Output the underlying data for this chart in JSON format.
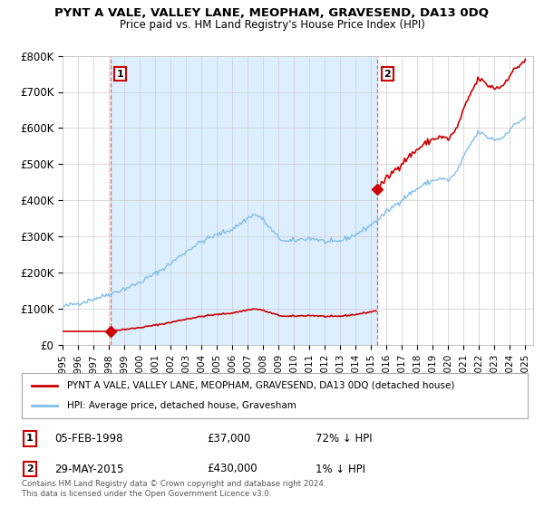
{
  "title": "PYNT A VALE, VALLEY LANE, MEOPHAM, GRAVESEND, DA13 0DQ",
  "subtitle": "Price paid vs. HM Land Registry's House Price Index (HPI)",
  "sale1_date": 1998.09,
  "sale1_price": 37000,
  "sale2_date": 2015.41,
  "sale2_price": 430000,
  "hpi_color": "#7fbfea",
  "price_color": "#cc0000",
  "shaded_color": "#ddeeff",
  "ylim": [
    0,
    800000
  ],
  "xlim": [
    1995.0,
    2025.5
  ],
  "yticks": [
    0,
    100000,
    200000,
    300000,
    400000,
    500000,
    600000,
    700000,
    800000
  ],
  "ytick_labels": [
    "£0",
    "£100K",
    "£200K",
    "£300K",
    "£400K",
    "£500K",
    "£600K",
    "£700K",
    "£800K"
  ],
  "xticks": [
    1995,
    1996,
    1997,
    1998,
    1999,
    2000,
    2001,
    2002,
    2003,
    2004,
    2005,
    2006,
    2007,
    2008,
    2009,
    2010,
    2011,
    2012,
    2013,
    2014,
    2015,
    2016,
    2017,
    2018,
    2019,
    2020,
    2021,
    2022,
    2023,
    2024,
    2025
  ],
  "legend_label1": "PYNT A VALE, VALLEY LANE, MEOPHAM, GRAVESEND, DA13 0DQ (detached house)",
  "legend_label2": "HPI: Average price, detached house, Gravesham",
  "annotation1_text": "05-FEB-1998",
  "annotation1_price": "£37,000",
  "annotation1_hpi": "72% ↓ HPI",
  "annotation2_text": "29-MAY-2015",
  "annotation2_price": "£430,000",
  "annotation2_hpi": "1% ↓ HPI",
  "footer1": "Contains HM Land Registry data © Crown copyright and database right 2024.",
  "footer2": "This data is licensed under the Open Government Licence v3.0.",
  "background_color": "#ffffff",
  "grid_color": "#cccccc"
}
